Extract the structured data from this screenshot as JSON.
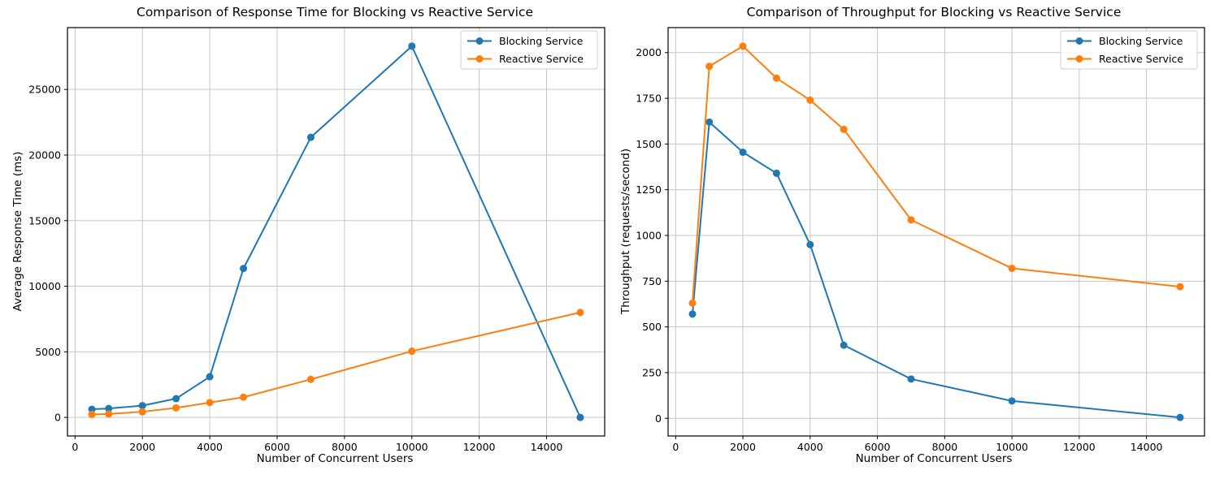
{
  "figure": {
    "background": "#ffffff",
    "grid_color": "#c6c6c6",
    "spine_color": "#000000",
    "legend_border_color": "#cccccc"
  },
  "chart_data": [
    {
      "type": "line",
      "title": "Comparison of Response Time for Blocking vs Reactive Service",
      "xlabel": "Number of Concurrent Users",
      "ylabel": "Average Response Time (ms)",
      "x": [
        500,
        1000,
        2000,
        3000,
        4000,
        5000,
        7000,
        10000,
        15000
      ],
      "series": [
        {
          "name": "Blocking Service",
          "color": "#1f77b4",
          "values": [
            620,
            680,
            900,
            1430,
            3100,
            11350,
            21350,
            28300,
            0
          ]
        },
        {
          "name": "Reactive Service",
          "color": "#ff7f0e",
          "values": [
            230,
            260,
            430,
            730,
            1130,
            1540,
            2900,
            5050,
            8000
          ]
        }
      ],
      "xticks": [
        0,
        2000,
        4000,
        6000,
        8000,
        10000,
        12000,
        14000
      ],
      "yticks": [
        0,
        5000,
        10000,
        15000,
        20000,
        25000
      ],
      "xlim": [
        -225,
        15725
      ],
      "ylim": [
        -1415,
        29715
      ],
      "grid": true,
      "legend_position": "upper right",
      "marker": "o"
    },
    {
      "type": "line",
      "title": "Comparison of Throughput for Blocking vs Reactive Service",
      "xlabel": "Number of Concurrent Users",
      "ylabel": "Throughput (requests/second)",
      "x": [
        500,
        1000,
        2000,
        3000,
        4000,
        5000,
        7000,
        10000,
        15000
      ],
      "series": [
        {
          "name": "Blocking Service",
          "color": "#1f77b4",
          "values": [
            570,
            1620,
            1455,
            1340,
            950,
            400,
            215,
            95,
            5
          ]
        },
        {
          "name": "Reactive Service",
          "color": "#ff7f0e",
          "values": [
            630,
            1925,
            2035,
            1860,
            1740,
            1580,
            1085,
            820,
            720
          ]
        }
      ],
      "xticks": [
        0,
        2000,
        4000,
        6000,
        8000,
        10000,
        12000,
        14000
      ],
      "yticks": [
        0,
        250,
        500,
        750,
        1000,
        1250,
        1500,
        1750,
        2000
      ],
      "xlim": [
        -225,
        15725
      ],
      "ylim": [
        -96.5,
        2136.5
      ],
      "grid": true,
      "legend_position": "upper right",
      "marker": "o"
    }
  ]
}
